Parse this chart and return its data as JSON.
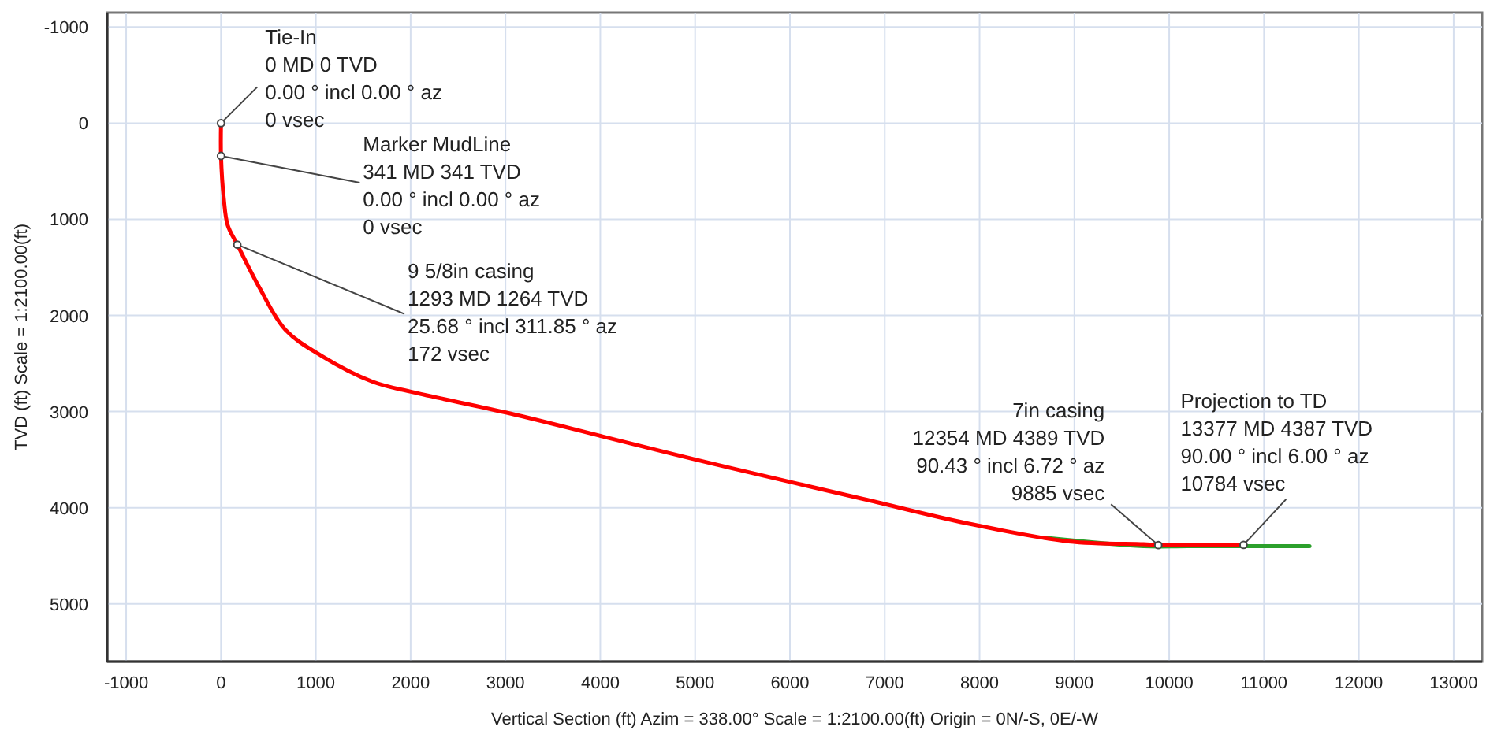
{
  "chart_data": {
    "type": "line",
    "xlabel": "Vertical Section (ft) Azim = 338.00° Scale = 1:2100.00(ft) Origin = 0N/-S, 0E/-W",
    "ylabel": "TVD (ft) Scale = 1:2100.00(ft)",
    "xlim": [
      -1200,
      13300
    ],
    "xticks": [
      -1000,
      0,
      1000,
      2000,
      3000,
      4000,
      5000,
      6000,
      7000,
      8000,
      9000,
      10000,
      11000,
      12000,
      13000
    ],
    "ylim": [
      5600,
      -1150
    ],
    "yticks": [
      -1000,
      0,
      1000,
      2000,
      3000,
      4000,
      5000
    ],
    "grid": true,
    "marker": "none",
    "line_style": "solid",
    "series": [
      {
        "color": "#2ca02c",
        "x": [
          8670,
          9730,
          10200,
          11480
        ],
        "values": [
          4310,
          4400,
          4400,
          4400
        ]
      },
      {
        "color": "#ff0000",
        "x": [
          0,
          0,
          30,
          70,
          172,
          410,
          680,
          1060,
          1600,
          2030,
          3050,
          4030,
          5050,
          6080,
          6780,
          7860,
          8940,
          9730,
          9885,
          10784
        ],
        "values": [
          0,
          341,
          790,
          1060,
          1264,
          1720,
          2150,
          2420,
          2690,
          2800,
          3020,
          3260,
          3510,
          3750,
          3910,
          4160,
          4350,
          4380,
          4389,
          4387
        ]
      }
    ],
    "annotations": [
      {
        "text": "Tie-In\n0 MD 0 TVD\n0.00 ° incl 0.00 ° az\n0 vsec",
        "x": 0,
        "y": 0
      },
      {
        "text": "Marker MudLine\n341 MD 341 TVD\n0.00 ° incl 0.00 ° az\n0 vsec",
        "x": 0,
        "y": 341
      },
      {
        "text": "9 5/8in casing\n1293 MD 1264 TVD\n25.68 ° incl 311.85 ° az\n172 vsec",
        "x": 172,
        "y": 1264
      },
      {
        "text": "7in casing\n12354 MD 4389 TVD\n90.43 ° incl 6.72 ° az\n9885 vsec",
        "x": 9885,
        "y": 4389
      },
      {
        "text": "Projection to TD\n13377 MD 4387 TVD\n90.00 ° incl 6.00 ° az\n10784 vsec",
        "x": 10784,
        "y": 4387
      }
    ]
  }
}
